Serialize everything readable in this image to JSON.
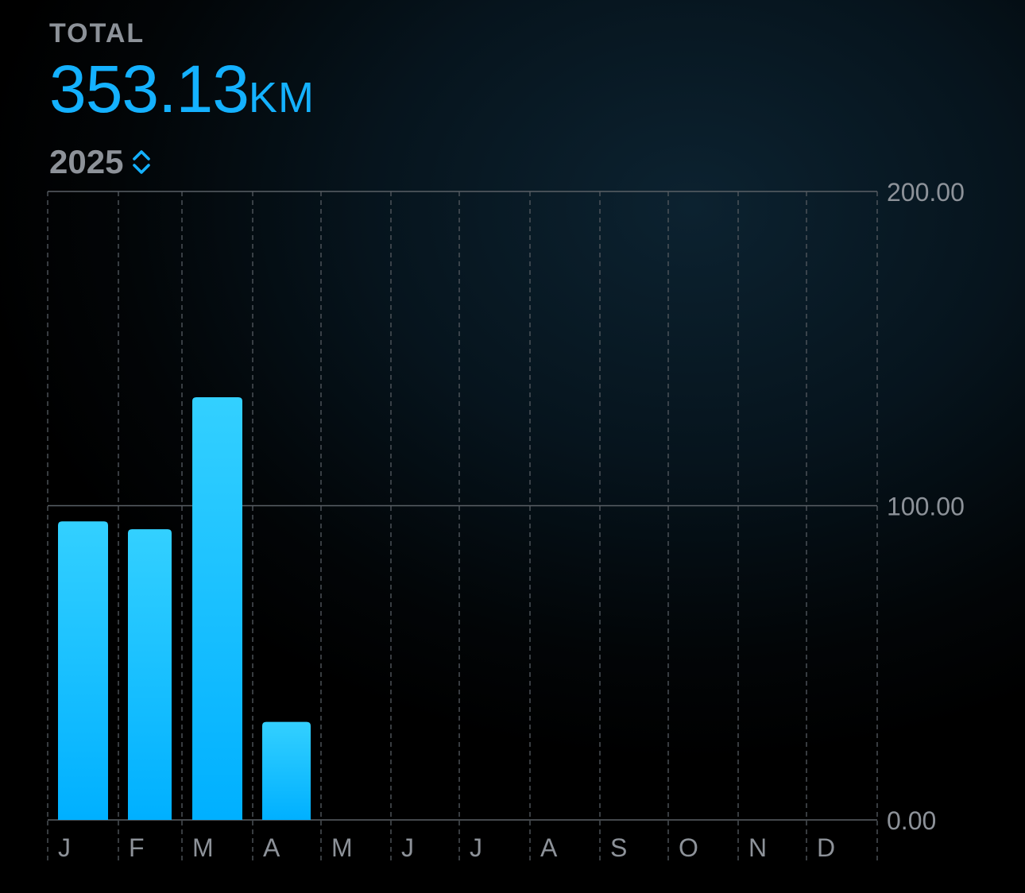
{
  "summary": {
    "label": "TOTAL",
    "value": "353.13",
    "unit": "KM",
    "year": "2025",
    "year_picker_icon": "chevron-up-down-icon"
  },
  "colors": {
    "accent": "#14b1ff",
    "bar_top": "#33d0ff",
    "bar_bottom": "#00b0ff",
    "muted_text": "#8d9299",
    "grid": "#50565c"
  },
  "chart_data": {
    "type": "bar",
    "categories": [
      "J",
      "F",
      "M",
      "A",
      "M",
      "J",
      "J",
      "A",
      "S",
      "O",
      "N",
      "D"
    ],
    "values": [
      95,
      92.5,
      134.5,
      31.2,
      0,
      0,
      0,
      0,
      0,
      0,
      0,
      0
    ],
    "ylim": [
      0,
      200
    ],
    "yticks": [
      0,
      100,
      200
    ],
    "ytick_labels": [
      "0.00",
      "100.00",
      "200.00"
    ],
    "title": "",
    "xlabel": "",
    "ylabel": "",
    "grid": true
  }
}
